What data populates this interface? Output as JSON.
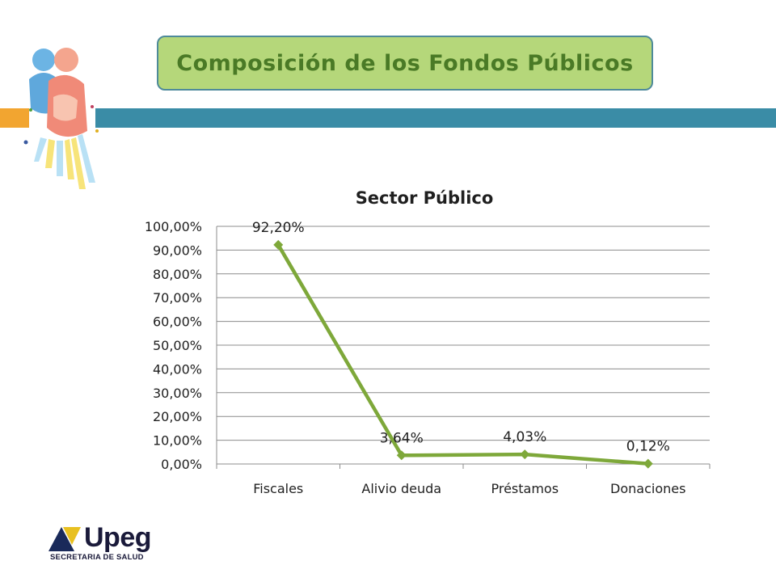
{
  "slide": {
    "title": "Composición de los Fondos Públicos"
  },
  "branding": {
    "logo_text": "Upeg",
    "logo_subtitle": "SECRETARIA DE SALUD"
  },
  "colors": {
    "title_bg": "#b5d77a",
    "title_text": "#4a7a26",
    "band_teal": "#3a8ca6",
    "band_orange": "#f2a530",
    "series_line": "#7ea83a"
  },
  "chart_data": {
    "type": "line",
    "title": "Sector Público",
    "categories": [
      "Fiscales",
      "Alivio deuda",
      "Préstamos",
      "Donaciones"
    ],
    "series": [
      {
        "values": [
          92.2,
          3.64,
          4.03,
          0.12
        ],
        "data_labels": [
          "92,20%",
          "3,64%",
          "4,03%",
          "0,12%"
        ]
      }
    ],
    "y_ticks": [
      "0,00%",
      "10,00%",
      "20,00%",
      "30,00%",
      "40,00%",
      "50,00%",
      "60,00%",
      "70,00%",
      "80,00%",
      "90,00%",
      "100,00%"
    ],
    "ylim": [
      0,
      100
    ],
    "grid": true,
    "legend": "none",
    "marker": "diamond"
  }
}
